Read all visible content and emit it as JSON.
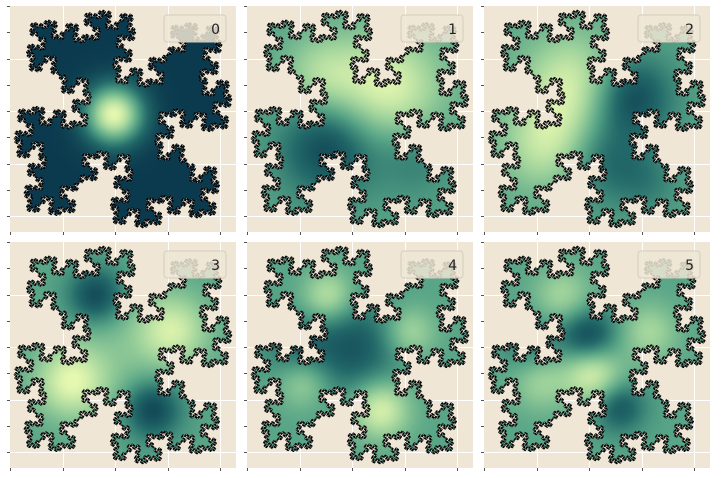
{
  "figure": {
    "background": "#ffffff",
    "axes_facecolor": "#efe6d5",
    "grid_color": "#ffffff",
    "outline_color": "#000000",
    "colormap": [
      "#0b3a4e",
      "#236a6a",
      "#58a587",
      "#9fd39c",
      "#e6f8b0"
    ]
  },
  "chart_data": [
    {
      "type": "heatmap",
      "legend": "0",
      "grid": true,
      "legend_position": "top-right",
      "modes": [
        [
          0.46,
          0.48,
          1.0,
          0.09
        ]
      ]
    },
    {
      "type": "heatmap",
      "legend": "1",
      "grid": true,
      "legend_position": "top-right",
      "modes": [
        [
          0.62,
          0.36,
          0.95,
          0.17
        ],
        [
          0.33,
          0.3,
          0.55,
          0.12
        ],
        [
          0.36,
          0.63,
          -0.85,
          0.15
        ],
        [
          0.74,
          0.67,
          -0.35,
          0.12
        ]
      ]
    },
    {
      "type": "heatmap",
      "legend": "2",
      "grid": true,
      "legend_position": "top-right",
      "modes": [
        [
          0.4,
          0.35,
          0.9,
          0.16
        ],
        [
          0.28,
          0.62,
          0.75,
          0.14
        ],
        [
          0.64,
          0.4,
          -0.95,
          0.13
        ],
        [
          0.52,
          0.68,
          -0.55,
          0.13
        ],
        [
          0.72,
          0.78,
          -0.3,
          0.1
        ]
      ]
    },
    {
      "type": "heatmap",
      "legend": "3",
      "grid": true,
      "legend_position": "top-right",
      "modes": [
        [
          0.38,
          0.24,
          -0.9,
          0.09
        ],
        [
          0.27,
          0.62,
          0.9,
          0.11
        ],
        [
          0.72,
          0.39,
          0.8,
          0.11
        ],
        [
          0.63,
          0.74,
          -0.9,
          0.09
        ],
        [
          0.47,
          0.47,
          0.25,
          0.2
        ]
      ]
    },
    {
      "type": "heatmap",
      "legend": "4",
      "grid": true,
      "legend_position": "top-right",
      "modes": [
        [
          0.47,
          0.47,
          -0.7,
          0.15
        ],
        [
          0.36,
          0.24,
          0.75,
          0.08
        ],
        [
          0.72,
          0.4,
          0.6,
          0.08
        ],
        [
          0.25,
          0.62,
          0.55,
          0.08
        ],
        [
          0.59,
          0.74,
          0.95,
          0.09
        ],
        [
          0.21,
          0.47,
          -0.4,
          0.1
        ]
      ]
    },
    {
      "type": "heatmap",
      "legend": "5",
      "grid": true,
      "legend_position": "top-right",
      "modes": [
        [
          0.48,
          0.58,
          0.95,
          0.09
        ],
        [
          0.46,
          0.42,
          -0.9,
          0.09
        ],
        [
          0.35,
          0.24,
          0.55,
          0.09
        ],
        [
          0.73,
          0.4,
          0.55,
          0.09
        ],
        [
          0.25,
          0.62,
          0.5,
          0.09
        ],
        [
          0.6,
          0.73,
          -0.7,
          0.08
        ],
        [
          0.2,
          0.45,
          -0.4,
          0.09
        ]
      ]
    }
  ]
}
